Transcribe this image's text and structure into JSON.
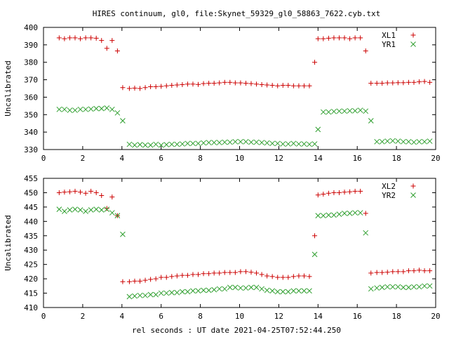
{
  "title": "HIRES continuum, gl0, file:Skynet_59329_gl0_58863_7622.cyb.txt",
  "xlabel": "rel seconds : UT date 2021-04-25T07:52:44.250",
  "colors": {
    "XL": "#cc0000",
    "YR": "#2e9e2e",
    "axis": "#000000"
  },
  "chart_data": [
    {
      "type": "scatter",
      "ylabel": "Uncalibrated",
      "xlim": [
        0,
        20
      ],
      "ylim": [
        330,
        400
      ],
      "xticks": [
        0,
        2,
        4,
        6,
        8,
        10,
        12,
        14,
        16,
        18,
        20
      ],
      "yticks": [
        330,
        340,
        350,
        360,
        370,
        380,
        390,
        400
      ],
      "grid": false,
      "legend_position": "top-right",
      "series": [
        {
          "name": "XL1",
          "marker": "plus",
          "color": "#cc0000",
          "x": [
            0.8,
            1.07,
            1.34,
            1.61,
            1.88,
            2.15,
            2.42,
            2.69,
            2.96,
            3.23,
            3.5,
            3.77,
            4.04,
            4.38,
            4.65,
            4.92,
            5.19,
            5.46,
            5.73,
            6.0,
            6.27,
            6.54,
            6.81,
            7.08,
            7.35,
            7.62,
            7.89,
            8.16,
            8.43,
            8.7,
            8.97,
            9.24,
            9.51,
            9.78,
            10.05,
            10.32,
            10.59,
            10.86,
            11.13,
            11.4,
            11.67,
            11.94,
            12.21,
            12.48,
            12.75,
            13.02,
            13.29,
            13.56,
            13.83,
            14.0,
            14.27,
            14.54,
            14.81,
            15.08,
            15.35,
            15.62,
            15.89,
            16.16,
            16.43,
            16.7,
            17.0,
            17.27,
            17.54,
            17.81,
            18.08,
            18.35,
            18.62,
            18.89,
            19.16,
            19.43,
            19.7
          ],
          "y": [
            394,
            393.5,
            394,
            394,
            393.5,
            394,
            394,
            393.8,
            392.5,
            388,
            392.5,
            386.5,
            365.5,
            365,
            365.2,
            365,
            365.5,
            366,
            366,
            366.2,
            366.5,
            366.8,
            367,
            367.2,
            367.5,
            367.5,
            367.3,
            367.8,
            368,
            368,
            368.2,
            368.5,
            368.5,
            368.2,
            368.2,
            368,
            367.8,
            367.5,
            367.2,
            367,
            366.8,
            366.5,
            366.8,
            366.8,
            366.5,
            366.5,
            366.5,
            366.5,
            380,
            393.5,
            393.5,
            393.8,
            394,
            394,
            394,
            393.5,
            394,
            394,
            386.5,
            368,
            368,
            368,
            368.2,
            368.2,
            368.3,
            368.3,
            368.5,
            368.5,
            368.8,
            369,
            368.5
          ],
          "x_note": ""
        },
        {
          "name": "YR1",
          "marker": "cross",
          "color": "#2e9e2e",
          "x": [
            0.8,
            1.07,
            1.34,
            1.61,
            1.88,
            2.15,
            2.42,
            2.69,
            2.96,
            3.23,
            3.5,
            3.77,
            4.04,
            4.38,
            4.65,
            4.92,
            5.19,
            5.46,
            5.73,
            6.0,
            6.27,
            6.54,
            6.81,
            7.08,
            7.35,
            7.62,
            7.89,
            8.16,
            8.43,
            8.7,
            8.97,
            9.24,
            9.51,
            9.78,
            10.05,
            10.32,
            10.59,
            10.86,
            11.13,
            11.4,
            11.67,
            11.94,
            12.21,
            12.48,
            12.75,
            13.02,
            13.29,
            13.56,
            13.83,
            14.0,
            14.27,
            14.54,
            14.81,
            15.08,
            15.35,
            15.62,
            15.89,
            16.16,
            16.43,
            16.7,
            17.0,
            17.27,
            17.54,
            17.81,
            18.08,
            18.35,
            18.62,
            18.89,
            19.16,
            19.43,
            19.7
          ],
          "y": [
            353,
            353,
            352.5,
            352.5,
            353,
            353,
            353.2,
            353.5,
            353.5,
            353.8,
            353,
            351,
            346.5,
            333,
            332.5,
            332.8,
            332.5,
            332.5,
            333,
            332.5,
            332.8,
            333,
            333,
            333.2,
            333.5,
            333.5,
            333.5,
            333.8,
            334,
            334,
            334,
            334.2,
            334.2,
            334.5,
            334.5,
            334.5,
            334.2,
            334.2,
            334,
            333.8,
            333.5,
            333.5,
            333.2,
            333.2,
            333.5,
            333.2,
            333.2,
            333,
            333.2,
            341.5,
            351.5,
            351.5,
            351.8,
            352,
            352,
            352.2,
            352.2,
            352.5,
            352,
            346.5,
            334.5,
            334.5,
            334.8,
            335,
            334.8,
            334.5,
            334.5,
            334.2,
            334.5,
            334.5,
            334.8
          ],
          "x_note": ""
        }
      ]
    },
    {
      "type": "scatter",
      "ylabel": "Uncalibrated",
      "xlim": [
        0,
        20
      ],
      "ylim": [
        410,
        455
      ],
      "xticks": [
        0,
        2,
        4,
        6,
        8,
        10,
        12,
        14,
        16,
        18,
        20
      ],
      "yticks": [
        410,
        415,
        420,
        425,
        430,
        435,
        440,
        445,
        450,
        455
      ],
      "grid": false,
      "legend_position": "top-right",
      "series": [
        {
          "name": "XL2",
          "marker": "plus",
          "color": "#cc0000",
          "x": [
            0.8,
            1.07,
            1.34,
            1.61,
            1.88,
            2.15,
            2.42,
            2.69,
            2.96,
            3.23,
            3.5,
            3.77,
            4.04,
            4.38,
            4.65,
            4.92,
            5.19,
            5.46,
            5.73,
            6.0,
            6.27,
            6.54,
            6.81,
            7.08,
            7.35,
            7.62,
            7.89,
            8.16,
            8.43,
            8.7,
            8.97,
            9.24,
            9.51,
            9.78,
            10.05,
            10.32,
            10.59,
            10.86,
            11.13,
            11.4,
            11.67,
            11.94,
            12.21,
            12.48,
            12.75,
            13.02,
            13.29,
            13.56,
            13.83,
            14.0,
            14.27,
            14.54,
            14.81,
            15.08,
            15.35,
            15.62,
            15.89,
            16.16,
            16.43,
            16.7,
            17.0,
            17.27,
            17.54,
            17.81,
            18.08,
            18.35,
            18.62,
            18.89,
            19.16,
            19.43,
            19.7
          ],
          "y": [
            450,
            450.2,
            450.3,
            450.5,
            450.2,
            449.8,
            450.5,
            450,
            449,
            444.5,
            448.5,
            442,
            419,
            419,
            419.2,
            419.2,
            419.5,
            419.8,
            420,
            420.5,
            420.5,
            420.8,
            421,
            421.2,
            421.2,
            421.5,
            421.5,
            421.8,
            421.8,
            422,
            422,
            422.2,
            422.2,
            422.2,
            422.5,
            422.5,
            422.3,
            422,
            421.5,
            421,
            420.8,
            420.5,
            420.5,
            420.5,
            420.8,
            421,
            421,
            420.8,
            435,
            449.2,
            449.5,
            449.8,
            450,
            450,
            450.2,
            450.3,
            450.5,
            450.5,
            442.8,
            422,
            422.2,
            422.2,
            422.3,
            422.5,
            422.5,
            422.5,
            422.8,
            422.8,
            423,
            422.8,
            422.8
          ],
          "x_note": ""
        },
        {
          "name": "YR2",
          "marker": "cross",
          "color": "#2e9e2e",
          "x": [
            0.8,
            1.07,
            1.34,
            1.61,
            1.88,
            2.15,
            2.42,
            2.69,
            2.96,
            3.23,
            3.5,
            3.77,
            4.04,
            4.38,
            4.65,
            4.92,
            5.19,
            5.46,
            5.73,
            6.0,
            6.27,
            6.54,
            6.81,
            7.08,
            7.35,
            7.62,
            7.89,
            8.16,
            8.43,
            8.7,
            8.97,
            9.24,
            9.51,
            9.78,
            10.05,
            10.32,
            10.59,
            10.86,
            11.13,
            11.4,
            11.67,
            11.94,
            12.21,
            12.48,
            12.75,
            13.02,
            13.29,
            13.56,
            13.83,
            14.0,
            14.27,
            14.54,
            14.81,
            15.08,
            15.35,
            15.62,
            15.89,
            16.16,
            16.43,
            16.7,
            17.0,
            17.27,
            17.54,
            17.81,
            18.08,
            18.35,
            18.62,
            18.89,
            19.16,
            19.43,
            19.7
          ],
          "y": [
            444.2,
            443.5,
            444,
            444.2,
            444,
            443.5,
            444,
            444.2,
            444,
            444.2,
            443,
            442,
            435.5,
            413.8,
            414,
            414.2,
            414.2,
            414.5,
            414.5,
            415,
            415,
            415.2,
            415.2,
            415.5,
            415.5,
            415.8,
            415.8,
            416,
            416,
            416.2,
            416.5,
            416.5,
            417,
            417,
            416.8,
            416.8,
            417,
            417,
            416.5,
            416,
            415.8,
            415.5,
            415.5,
            415.5,
            415.8,
            415.8,
            415.8,
            415.8,
            428.5,
            442,
            442,
            442.2,
            442.2,
            442.5,
            442.8,
            442.8,
            443,
            443,
            436,
            416.5,
            416.8,
            417,
            417.2,
            417.2,
            417.2,
            417,
            417,
            417.2,
            417.2,
            417.5,
            417.5
          ],
          "x_note": ""
        }
      ]
    }
  ]
}
